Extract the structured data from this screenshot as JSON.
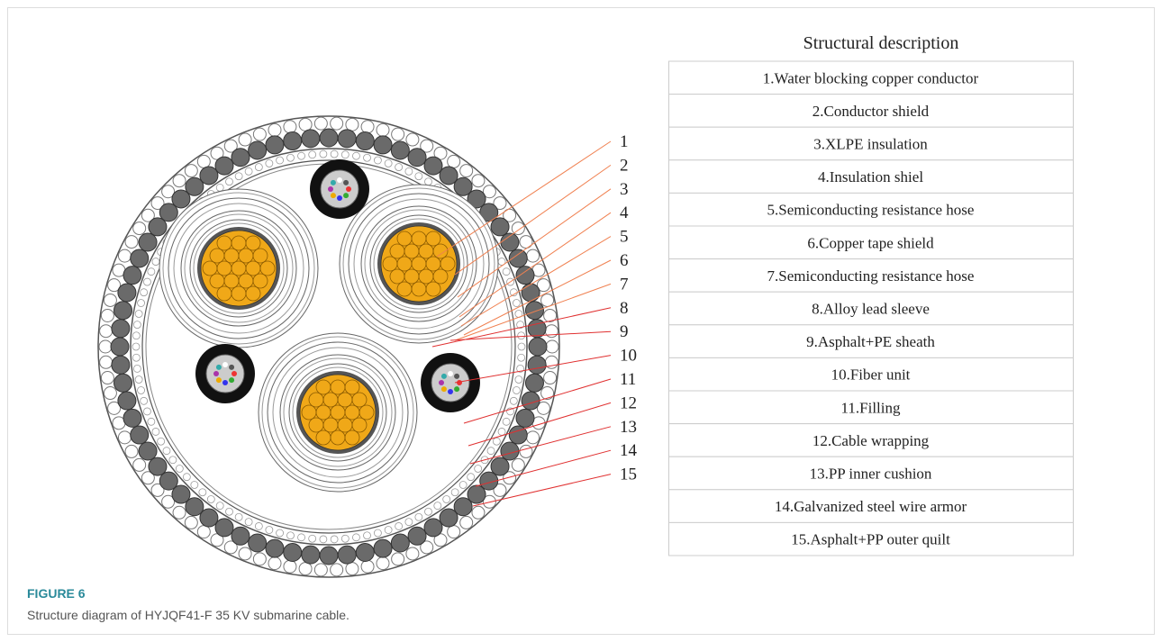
{
  "table": {
    "title": "Structural description",
    "rows": [
      "1.Water blocking copper conductor",
      "2.Conductor shield",
      "3.XLPE insulation",
      "4.Insulation shiel",
      "5.Semiconducting resistance hose",
      "6.Copper tape shield",
      "7.Semiconducting resistance hose",
      "8.Alloy lead sleeve",
      "9.Asphalt+PE sheath",
      "10.Fiber unit",
      "11.Filling",
      "12.Cable wrapping",
      "13.PP inner cushion",
      "14.Galvanized steel wire armor",
      "15.Asphalt+PP outer quilt"
    ]
  },
  "callouts": [
    "1",
    "2",
    "3",
    "4",
    "5",
    "6",
    "7",
    "8",
    "9",
    "10",
    "11",
    "12",
    "13",
    "14",
    "15"
  ],
  "figure": {
    "label": "FIGURE 6",
    "caption": "Structure diagram of HYJQF41-F 35 KV submarine cable."
  }
}
